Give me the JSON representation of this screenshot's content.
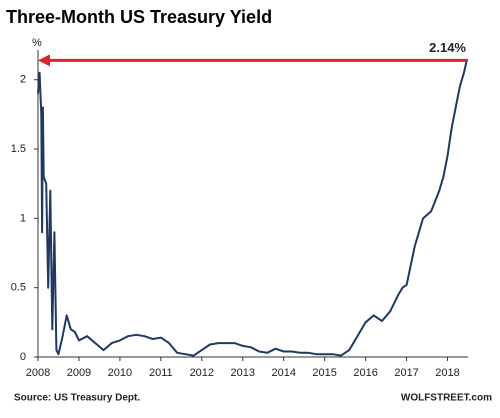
{
  "chart_data": {
    "type": "line",
    "title": "Three-Month US Treasury Yield",
    "y_label": "%",
    "source": "Source: US Treasury Dept.",
    "watermark": "WOLFSTREET.com",
    "annotation": {
      "value": 2.14,
      "label": "2.14%"
    },
    "annotation_color": "#e0202a",
    "color": "#1f3864",
    "x": [
      2008.0,
      2008.04,
      2008.08,
      2008.1,
      2008.12,
      2008.14,
      2008.2,
      2008.25,
      2008.3,
      2008.35,
      2008.4,
      2008.45,
      2008.5,
      2008.6,
      2008.7,
      2008.8,
      2008.9,
      2009.0,
      2009.2,
      2009.4,
      2009.6,
      2009.8,
      2010.0,
      2010.2,
      2010.4,
      2010.6,
      2010.8,
      2011.0,
      2011.2,
      2011.4,
      2011.6,
      2011.8,
      2012.0,
      2012.2,
      2012.4,
      2012.6,
      2012.8,
      2013.0,
      2013.2,
      2013.4,
      2013.6,
      2013.8,
      2014.0,
      2014.2,
      2014.4,
      2014.6,
      2014.8,
      2015.0,
      2015.2,
      2015.4,
      2015.6,
      2015.8,
      2016.0,
      2016.2,
      2016.4,
      2016.6,
      2016.8,
      2016.9,
      2017.0,
      2017.2,
      2017.4,
      2017.6,
      2017.8,
      2017.9,
      2018.0,
      2018.1,
      2018.2,
      2018.3,
      2018.4,
      2018.47
    ],
    "values": [
      1.9,
      2.05,
      1.75,
      0.9,
      1.8,
      1.3,
      1.25,
      0.5,
      1.2,
      0.2,
      0.9,
      0.05,
      0.02,
      0.15,
      0.3,
      0.2,
      0.18,
      0.12,
      0.15,
      0.1,
      0.05,
      0.1,
      0.12,
      0.15,
      0.16,
      0.15,
      0.13,
      0.14,
      0.1,
      0.03,
      0.02,
      0.01,
      0.05,
      0.09,
      0.1,
      0.1,
      0.1,
      0.08,
      0.07,
      0.04,
      0.03,
      0.06,
      0.04,
      0.04,
      0.03,
      0.03,
      0.02,
      0.02,
      0.02,
      0.01,
      0.05,
      0.15,
      0.25,
      0.3,
      0.26,
      0.33,
      0.45,
      0.5,
      0.52,
      0.8,
      1.0,
      1.05,
      1.2,
      1.3,
      1.45,
      1.65,
      1.8,
      1.95,
      2.05,
      2.14
    ],
    "xlim": [
      2008,
      2018.5
    ],
    "xticks": [
      2008,
      2009,
      2010,
      2011,
      2012,
      2013,
      2014,
      2015,
      2016,
      2017,
      2018
    ],
    "ylim": [
      0,
      2.2
    ],
    "yticks": [
      0,
      0.5,
      1,
      1.5,
      2
    ]
  }
}
